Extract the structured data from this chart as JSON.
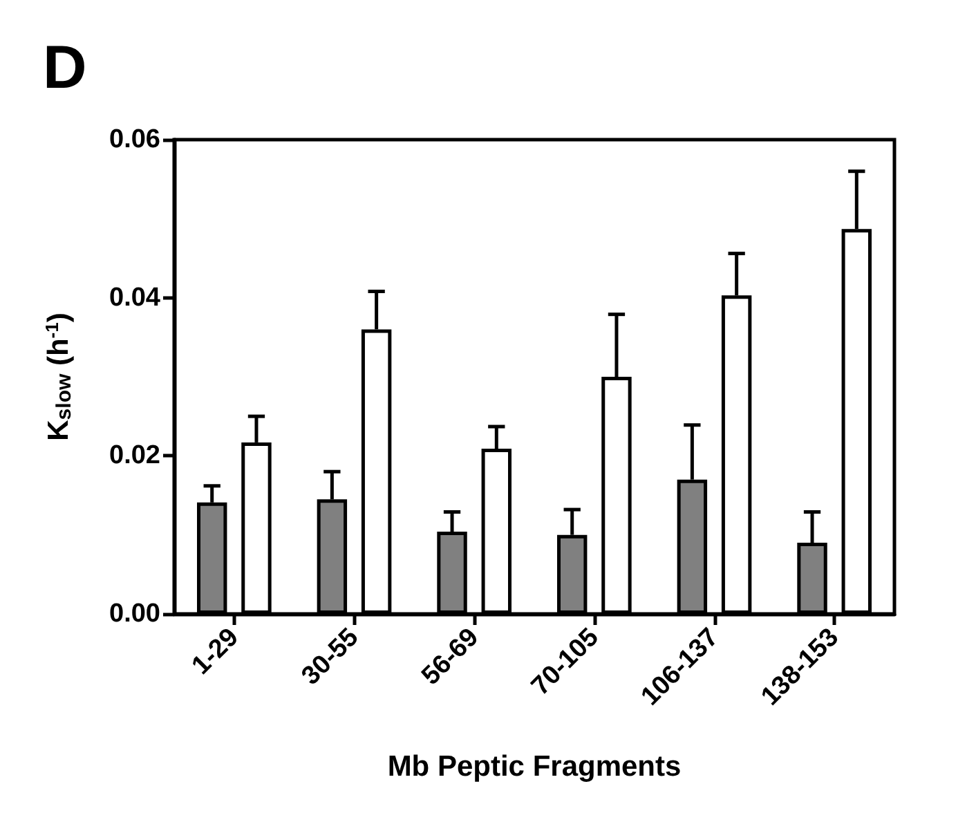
{
  "chart_data": {
    "type": "bar",
    "title": "D",
    "xlabel": "Mb Peptic Fragments",
    "ylabel": "K$_{slow}$ (h$^{-1}$)",
    "categories": [
      "1-29",
      "30-55",
      "56-69",
      "70-105",
      "106-137",
      "138-153"
    ],
    "series": [
      {
        "color": "#808080",
        "values": [
          0.0141,
          0.0145,
          0.0104,
          0.01,
          0.017,
          0.009
        ],
        "errors": [
          [
            0.0141,
            0.0162
          ],
          [
            0.0145,
            0.018
          ],
          [
            0.0104,
            0.0129
          ],
          [
            0.01,
            0.0132
          ],
          [
            0.017,
            0.0239
          ],
          [
            0.009,
            0.0129
          ]
        ]
      },
      {
        "color": "#ffffff",
        "values": [
          0.0217,
          0.036,
          0.0209,
          0.03,
          0.0403,
          0.0487
        ],
        "errors": [
          [
            0.0217,
            0.025
          ],
          [
            0.036,
            0.0408
          ],
          [
            0.0209,
            0.0237
          ],
          [
            0.03,
            0.0379
          ],
          [
            0.0403,
            0.0456
          ],
          [
            0.0487,
            0.056
          ]
        ]
      }
    ],
    "ylim": [
      0,
      0.06
    ],
    "yticks": [
      {
        "value": 0,
        "label": "0.00"
      },
      {
        "value": 0.02,
        "label": "0.02"
      },
      {
        "value": 0.04,
        "label": "0.04"
      },
      {
        "value": 0.06,
        "label": "0.06"
      }
    ],
    "grid": false
  }
}
